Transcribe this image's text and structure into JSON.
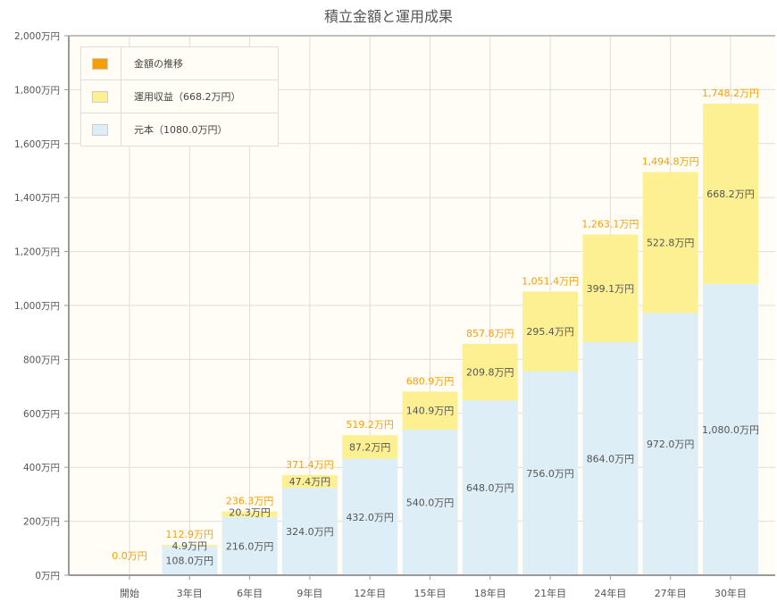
{
  "chart_data": {
    "type": "bar",
    "stacked": true,
    "title": "積立金額と運用成果",
    "categories": [
      "開始",
      "3年目",
      "6年目",
      "9年目",
      "12年目",
      "15年目",
      "18年目",
      "21年目",
      "24年目",
      "27年目",
      "30年目"
    ],
    "series": [
      {
        "name": "元本（1080.0万円）",
        "color": "#ddeef6",
        "values": [
          0,
          108.0,
          216.0,
          324.0,
          432.0,
          540.0,
          648.0,
          756.0,
          864.0,
          972.0,
          1080.0
        ],
        "labels": [
          "",
          "108.0万円",
          "216.0万円",
          "324.0万円",
          "432.0万円",
          "540.0万円",
          "648.0万円",
          "756.0万円",
          "864.0万円",
          "972.0万円",
          "1,080.0万円"
        ]
      },
      {
        "name": "運用収益（668.2万円）",
        "color": "#fdf092",
        "values": [
          0,
          4.9,
          20.3,
          47.4,
          87.2,
          140.9,
          209.8,
          295.4,
          399.1,
          522.8,
          668.2
        ],
        "labels": [
          "",
          "4.9万円",
          "20.3万円",
          "47.4万円",
          "87.2万円",
          "140.9万円",
          "209.8万円",
          "295.4万円",
          "399.1万円",
          "522.8万円",
          "668.2万円"
        ]
      }
    ],
    "totals": {
      "name": "金額の推移",
      "color": "#f5a000",
      "values": [
        0.0,
        112.9,
        236.3,
        371.4,
        519.2,
        680.9,
        857.8,
        1051.4,
        1263.1,
        1494.8,
        1748.2
      ],
      "labels": [
        "0.0万円",
        "112.9万円",
        "236.3万円",
        "371.4万円",
        "519.2万円",
        "680.9万円",
        "857.8万円",
        "1,051.4万円",
        "1,263.1万円",
        "1,494.8万円",
        "1,748.2万円"
      ]
    },
    "ylim": [
      0,
      2000
    ],
    "yticks": [
      0,
      200,
      400,
      600,
      800,
      1000,
      1200,
      1400,
      1600,
      1800,
      2000
    ],
    "ytick_labels": [
      "0万円",
      "200万円",
      "400万円",
      "600万円",
      "800万円",
      "1,000万円",
      "1,200万円",
      "1,400万円",
      "1,600万円",
      "1,800万円",
      "2,000万円"
    ],
    "grid": true,
    "legend": "top-left",
    "xlabel": "",
    "ylabel": ""
  }
}
